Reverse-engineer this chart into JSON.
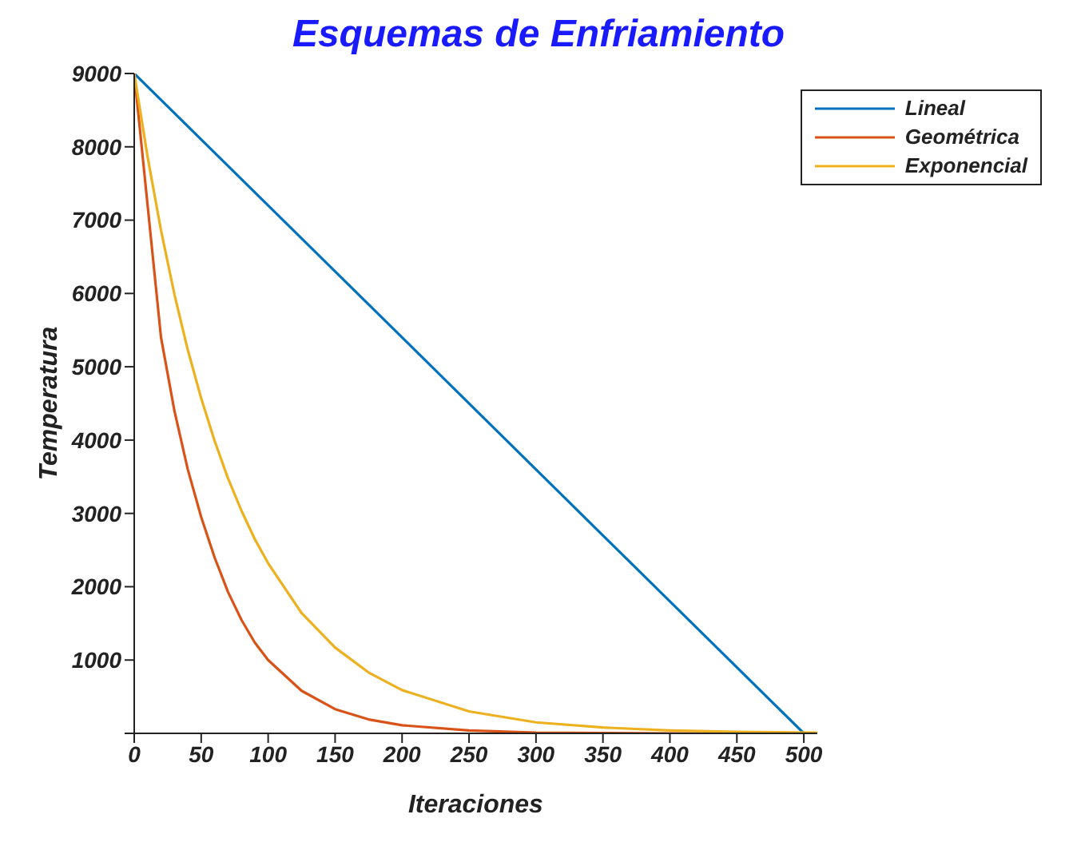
{
  "chart_data": {
    "type": "line",
    "title": "Esquemas de Enfriamiento",
    "xlabel": "Iteraciones",
    "ylabel": "Temperatura",
    "xlim": [
      0,
      510
    ],
    "xticks": [
      0,
      50,
      100,
      150,
      200,
      250,
      300,
      350,
      400,
      450,
      500
    ],
    "ylim": [
      0,
      9000
    ],
    "yticks": [
      {
        "value": 0,
        "label": null
      },
      1000,
      2000,
      3000,
      4000,
      5000,
      6000,
      7000,
      8000,
      9000
    ],
    "legend": "top right",
    "marker": "none",
    "line_style": "solid",
    "series": [
      {
        "name": "Lineal",
        "color": "#0072bd",
        "x": [
          0,
          500
        ],
        "values": [
          9000,
          0
        ]
      },
      {
        "name": "Geométrica",
        "color": "#d95319",
        "x": [
          0,
          10,
          20,
          30,
          40,
          50,
          60,
          70,
          80,
          90,
          100,
          125,
          150,
          175,
          200,
          250,
          300,
          350,
          400,
          450,
          510
        ],
        "values": [
          9000,
          7200,
          5400,
          4400,
          3600,
          2950,
          2400,
          1930,
          1550,
          1240,
          1000,
          580,
          330,
          190,
          110,
          40,
          10,
          5,
          0,
          0,
          0
        ]
      },
      {
        "name": "Exponencial",
        "color": "#edb120",
        "x": [
          0,
          10,
          20,
          30,
          40,
          50,
          60,
          70,
          80,
          90,
          100,
          125,
          150,
          175,
          200,
          250,
          300,
          350,
          400,
          450,
          510
        ],
        "values": [
          9000,
          7860,
          6860,
          5990,
          5230,
          4570,
          3990,
          3480,
          3040,
          2650,
          2320,
          1640,
          1170,
          830,
          590,
          300,
          150,
          80,
          40,
          20,
          10
        ]
      }
    ]
  }
}
